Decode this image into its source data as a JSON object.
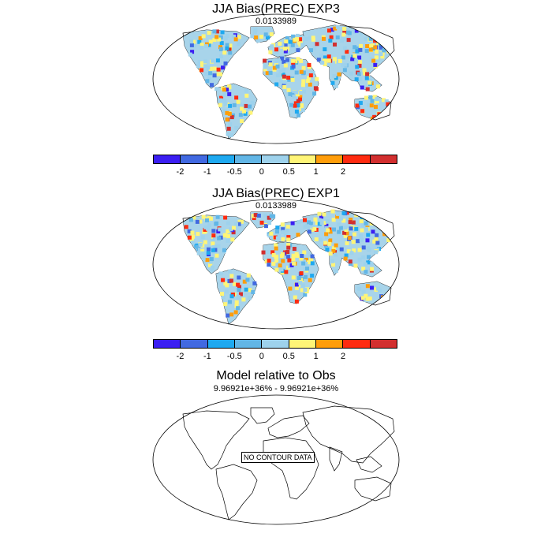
{
  "panels": [
    {
      "title": "JJA Bias(PREC) EXP3",
      "subtitle": "0.0133989"
    },
    {
      "title": "JJA Bias(PREC) EXP1",
      "subtitle": "0.0133989"
    },
    {
      "title": "Model relative to Obs",
      "subtitle": "9.96921e+36% - 9.96921e+36%",
      "no_data_label": "NO CONTOUR DATA"
    }
  ],
  "colorbar": {
    "colors": [
      "#3b1ef2",
      "#4169e1",
      "#1ea9f0",
      "#62b6e6",
      "#9ed2ec",
      "#fff577",
      "#ff9d0a",
      "#ff2b10",
      "#d22f2f"
    ],
    "tick_labels": [
      "-2",
      "-1",
      "-0.5",
      "0",
      "0.5",
      "1",
      "2"
    ]
  },
  "legend": {
    "colors": [
      "#3b1ef2",
      "#4169e1",
      "#1ea9f0",
      "#62b6e6",
      "#9ed2ec",
      "#fff577",
      "#ff9d0a",
      "#ff2b10",
      "#d22f2f"
    ]
  }
}
